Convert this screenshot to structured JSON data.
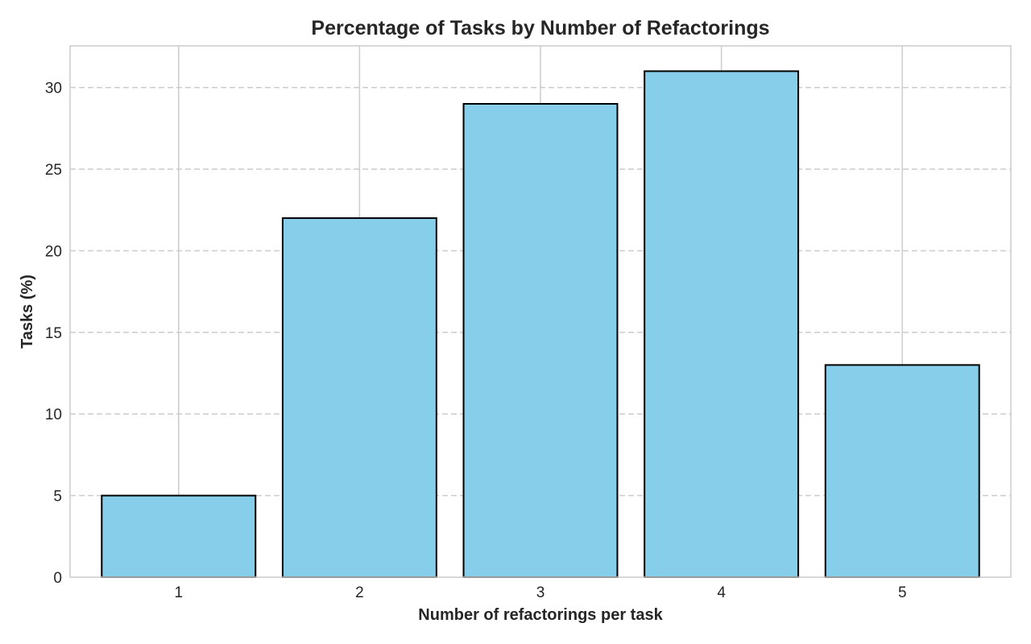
{
  "chart_data": {
    "type": "bar",
    "title": "Percentage of Tasks by Number of Refactorings",
    "xlabel": "Number of refactorings per task",
    "ylabel": "Tasks (%)",
    "categories": [
      "1",
      "2",
      "3",
      "4",
      "5"
    ],
    "values": [
      5,
      22,
      29,
      31,
      13
    ],
    "ylim": [
      0,
      32.55
    ],
    "yticks": [
      0,
      5,
      10,
      15,
      20,
      25,
      30
    ],
    "grid": true,
    "legend": "none",
    "colors": {
      "bar_fill": "#87CEEB",
      "bar_edge": "#000000",
      "grid": "#cccccc",
      "spine": "#cccccc",
      "text": "#262626"
    }
  }
}
